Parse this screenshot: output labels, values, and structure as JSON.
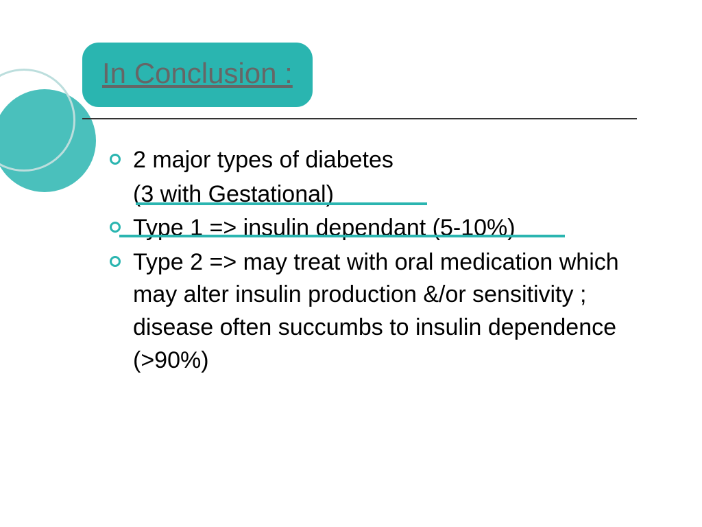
{
  "slide": {
    "title": "In Conclusion :",
    "bullets": [
      {
        "text": "2 major types of diabetes",
        "subtext": "(3 with Gestational)"
      },
      {
        "text": "Type 1 => insulin dependant (5-10%)"
      },
      {
        "text": "Type 2 => may treat with oral medication which may alter insulin production &/or sensitivity ; disease often succumbs to insulin dependence (>90%)"
      }
    ]
  },
  "colors": {
    "teal": "#2ab5b0",
    "tealLight": "#bcdedd",
    "titleGray": "#666666",
    "bodyText": "#000000",
    "bg": "#ffffff"
  },
  "typography": {
    "titleFontSize": 42,
    "bodyFontSize": 34,
    "fontFamily": "Verdana"
  }
}
